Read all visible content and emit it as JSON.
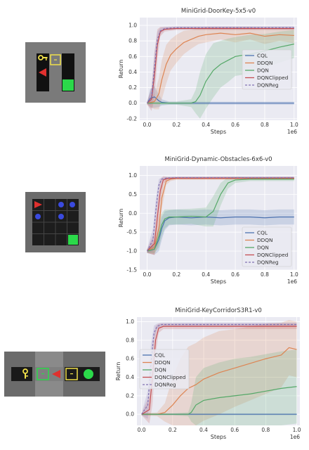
{
  "colors": {
    "CQL": "#4c72b0",
    "DDQN": "#dd8452",
    "DQN": "#55a868",
    "DQNClipped": "#c44e52",
    "DQNReg": "#8172b3",
    "plot_bg": "#eaeaf2",
    "grid": "#ffffff"
  },
  "chart_data": [
    {
      "type": "line",
      "title": "MiniGrid-DoorKey-5x5-v0",
      "xlabel": "Steps",
      "ylabel": "Return",
      "x_scale_label": "1e6",
      "xlim": [
        -0.05,
        1.02
      ],
      "ylim": [
        -0.22,
        1.1
      ],
      "xticks": [
        0.0,
        0.2,
        0.4,
        0.6,
        0.8,
        1.0
      ],
      "xtick_labels": [
        "0.0",
        "0.2",
        "0.4",
        "0.6",
        "0.8",
        "1.0"
      ],
      "yticks": [
        -0.2,
        0.0,
        0.2,
        0.4,
        0.6,
        0.8,
        1.0
      ],
      "ytick_labels": [
        "-0.2",
        "0.0",
        "0.2",
        "0.4",
        "0.6",
        "0.8",
        "1.0"
      ],
      "legend": "right",
      "legend_entries": [
        "CQL",
        "DDQN",
        "DQN",
        "DQNClipped",
        "DQNReg"
      ],
      "environment_icon": "doorkey-5x5-grid",
      "series": [
        {
          "name": "CQL",
          "key": "CQL",
          "dashed": false,
          "x": [
            0.0,
            0.02,
            0.05,
            0.08,
            0.1,
            0.15,
            0.2,
            0.3,
            0.5,
            0.7,
            0.9,
            1.0
          ],
          "y": [
            0.0,
            0.06,
            0.08,
            0.03,
            0.01,
            0.0,
            0.0,
            0.0,
            0.0,
            0.0,
            0.0,
            0.0
          ],
          "band": [
            0.0,
            0.12,
            0.14,
            0.08,
            0.04,
            0.02,
            0.02,
            0.02,
            0.02,
            0.02,
            0.02,
            0.02
          ]
        },
        {
          "name": "DDQN",
          "key": "DDQN",
          "dashed": false,
          "x": [
            0.0,
            0.05,
            0.08,
            0.1,
            0.13,
            0.16,
            0.2,
            0.25,
            0.3,
            0.35,
            0.4,
            0.5,
            0.6,
            0.7,
            0.8,
            0.9,
            1.0
          ],
          "y": [
            0.0,
            0.02,
            0.12,
            0.3,
            0.5,
            0.62,
            0.7,
            0.78,
            0.82,
            0.86,
            0.88,
            0.9,
            0.88,
            0.9,
            0.86,
            0.88,
            0.87
          ],
          "band": [
            0.02,
            0.1,
            0.2,
            0.25,
            0.25,
            0.2,
            0.18,
            0.15,
            0.12,
            0.1,
            0.1,
            0.08,
            0.1,
            0.08,
            0.1,
            0.08,
            0.1
          ]
        },
        {
          "name": "DQN",
          "key": "DQN",
          "dashed": false,
          "x": [
            0.0,
            0.1,
            0.2,
            0.3,
            0.33,
            0.36,
            0.4,
            0.45,
            0.5,
            0.55,
            0.6,
            0.7,
            0.8,
            0.9,
            1.0
          ],
          "y": [
            0.0,
            0.0,
            0.0,
            0.0,
            0.02,
            0.1,
            0.28,
            0.42,
            0.5,
            0.55,
            0.6,
            0.63,
            0.67,
            0.72,
            0.76
          ],
          "band": [
            0.01,
            0.02,
            0.02,
            0.05,
            0.15,
            0.3,
            0.35,
            0.35,
            0.3,
            0.28,
            0.25,
            0.25,
            0.22,
            0.2,
            0.18
          ]
        },
        {
          "name": "DQNClipped",
          "key": "DQNClipped",
          "dashed": false,
          "x": [
            0.0,
            0.03,
            0.05,
            0.07,
            0.09,
            0.12,
            0.2,
            0.4,
            0.6,
            0.8,
            1.0
          ],
          "y": [
            0.0,
            0.05,
            0.35,
            0.75,
            0.92,
            0.95,
            0.96,
            0.96,
            0.96,
            0.96,
            0.96
          ],
          "band": [
            0.02,
            0.15,
            0.3,
            0.2,
            0.06,
            0.03,
            0.02,
            0.02,
            0.02,
            0.02,
            0.02
          ]
        },
        {
          "name": "DQNReg",
          "key": "DQNReg",
          "dashed": true,
          "x": [
            0.0,
            0.03,
            0.05,
            0.07,
            0.09,
            0.12,
            0.2,
            0.4,
            0.6,
            0.8,
            1.0
          ],
          "y": [
            0.0,
            0.08,
            0.45,
            0.82,
            0.93,
            0.96,
            0.97,
            0.97,
            0.97,
            0.97,
            0.97
          ],
          "band": [
            0.02,
            0.1,
            0.2,
            0.1,
            0.04,
            0.02,
            0.02,
            0.02,
            0.02,
            0.02,
            0.02
          ]
        }
      ]
    },
    {
      "type": "line",
      "title": "MiniGrid-Dynamic-Obstacles-6x6-v0",
      "xlabel": "Steps",
      "ylabel": "Return",
      "x_scale_label": "1e6",
      "xlim": [
        -0.05,
        1.02
      ],
      "ylim": [
        -1.5,
        1.25
      ],
      "xticks": [
        0.0,
        0.2,
        0.4,
        0.6,
        0.8,
        1.0
      ],
      "xtick_labels": [
        "0.0",
        "0.2",
        "0.4",
        "0.6",
        "0.8",
        "1.0"
      ],
      "yticks": [
        -1.5,
        -1.0,
        -0.5,
        0.0,
        0.5,
        1.0
      ],
      "ytick_labels": [
        "-1.5",
        "-1.0",
        "-0.5",
        "0.0",
        "0.5",
        "1.0"
      ],
      "legend": "lower right",
      "legend_entries": [
        "CQL",
        "DDQN",
        "DQN",
        "DQNClipped",
        "DQNReg"
      ],
      "environment_icon": "dynamic-obstacles-6x6-grid",
      "series": [
        {
          "name": "CQL",
          "key": "CQL",
          "dashed": false,
          "x": [
            0.0,
            0.05,
            0.08,
            0.1,
            0.12,
            0.15,
            0.2,
            0.3,
            0.4,
            0.5,
            0.6,
            0.7,
            0.8,
            0.9,
            1.0
          ],
          "y": [
            -1.0,
            -0.95,
            -0.7,
            -0.4,
            -0.2,
            -0.12,
            -0.1,
            -0.12,
            -0.1,
            -0.12,
            -0.1,
            -0.1,
            -0.12,
            -0.1,
            -0.1
          ],
          "band": [
            0.05,
            0.15,
            0.3,
            0.3,
            0.25,
            0.2,
            0.2,
            0.2,
            0.2,
            0.2,
            0.2,
            0.2,
            0.2,
            0.2,
            0.2
          ]
        },
        {
          "name": "DDQN",
          "key": "DDQN",
          "dashed": false,
          "x": [
            0.0,
            0.05,
            0.08,
            0.1,
            0.13,
            0.16,
            0.2,
            0.3,
            0.5,
            0.7,
            0.9,
            1.0
          ],
          "y": [
            -1.0,
            -0.9,
            -0.4,
            0.4,
            0.85,
            0.9,
            0.92,
            0.92,
            0.92,
            0.92,
            0.92,
            0.92
          ],
          "band": [
            0.05,
            0.2,
            0.4,
            0.3,
            0.1,
            0.05,
            0.04,
            0.04,
            0.04,
            0.04,
            0.04,
            0.04
          ]
        },
        {
          "name": "DQN",
          "key": "DQN",
          "dashed": false,
          "x": [
            0.0,
            0.05,
            0.08,
            0.1,
            0.12,
            0.15,
            0.2,
            0.3,
            0.4,
            0.45,
            0.5,
            0.55,
            0.6,
            0.7,
            0.8,
            0.9,
            1.0
          ],
          "y": [
            -1.0,
            -0.95,
            -0.6,
            -0.3,
            -0.15,
            -0.1,
            -0.1,
            -0.08,
            -0.1,
            0.05,
            0.5,
            0.8,
            0.88,
            0.9,
            0.9,
            0.9,
            0.9
          ],
          "band": [
            0.05,
            0.1,
            0.3,
            0.3,
            0.25,
            0.2,
            0.2,
            0.2,
            0.25,
            0.4,
            0.3,
            0.15,
            0.08,
            0.05,
            0.05,
            0.05,
            0.05
          ]
        },
        {
          "name": "DQNClipped",
          "key": "DQNClipped",
          "dashed": false,
          "x": [
            0.0,
            0.05,
            0.07,
            0.09,
            0.11,
            0.14,
            0.2,
            0.4,
            0.6,
            0.8,
            1.0
          ],
          "y": [
            -1.0,
            -0.8,
            -0.1,
            0.6,
            0.88,
            0.92,
            0.93,
            0.93,
            0.93,
            0.93,
            0.93
          ],
          "band": [
            0.05,
            0.3,
            0.4,
            0.3,
            0.1,
            0.04,
            0.03,
            0.03,
            0.03,
            0.03,
            0.03
          ]
        },
        {
          "name": "DQNReg",
          "key": "DQNReg",
          "dashed": true,
          "x": [
            0.0,
            0.04,
            0.06,
            0.08,
            0.1,
            0.13,
            0.2,
            0.4,
            0.6,
            0.8,
            1.0
          ],
          "y": [
            -1.0,
            -0.7,
            0.1,
            0.75,
            0.9,
            0.93,
            0.94,
            0.94,
            0.94,
            0.94,
            0.94
          ],
          "band": [
            0.05,
            0.3,
            0.3,
            0.15,
            0.05,
            0.03,
            0.03,
            0.03,
            0.03,
            0.03,
            0.03
          ]
        }
      ]
    },
    {
      "type": "line",
      "title": "MiniGrid-KeyCorridorS3R1-v0",
      "xlabel": "Steps",
      "ylabel": "Return",
      "x_scale_label": "1e6",
      "xlim": [
        -0.03,
        1.02
      ],
      "ylim": [
        -0.12,
        1.05
      ],
      "xticks": [
        0.0,
        0.2,
        0.4,
        0.6,
        0.8,
        1.0
      ],
      "xtick_labels": [
        "0.0",
        "0.2",
        "0.4",
        "0.6",
        "0.8",
        "1.0"
      ],
      "yticks": [
        0.0,
        0.2,
        0.4,
        0.6,
        0.8,
        1.0
      ],
      "ytick_labels": [
        "0.0",
        "0.2",
        "0.4",
        "0.6",
        "0.8",
        "1.0"
      ],
      "legend": "left",
      "legend_entries": [
        "CQL",
        "DDQN",
        "DQN",
        "DQNClipped",
        "DQNReg"
      ],
      "environment_icon": "key-corridor-s3r1-grid",
      "series": [
        {
          "name": "CQL",
          "key": "CQL",
          "dashed": false,
          "x": [
            0.0,
            0.1,
            0.2,
            0.4,
            0.6,
            0.8,
            1.0
          ],
          "y": [
            0.0,
            0.0,
            0.0,
            0.0,
            0.0,
            0.0,
            0.0
          ],
          "band": [
            0.01,
            0.01,
            0.01,
            0.01,
            0.01,
            0.01,
            0.01
          ]
        },
        {
          "name": "DDQN",
          "key": "DDQN",
          "dashed": false,
          "x": [
            0.0,
            0.1,
            0.15,
            0.2,
            0.25,
            0.3,
            0.35,
            0.4,
            0.5,
            0.6,
            0.7,
            0.8,
            0.9,
            0.95,
            1.0
          ],
          "y": [
            0.0,
            0.0,
            0.02,
            0.1,
            0.2,
            0.28,
            0.32,
            0.38,
            0.45,
            0.5,
            0.55,
            0.6,
            0.64,
            0.72,
            0.7
          ],
          "band": [
            0.01,
            0.02,
            0.1,
            0.3,
            0.4,
            0.45,
            0.45,
            0.45,
            0.45,
            0.42,
            0.4,
            0.38,
            0.35,
            0.3,
            0.3
          ]
        },
        {
          "name": "DQN",
          "key": "DQN",
          "dashed": false,
          "x": [
            0.0,
            0.2,
            0.3,
            0.32,
            0.35,
            0.4,
            0.5,
            0.6,
            0.7,
            0.8,
            0.9,
            1.0
          ],
          "y": [
            0.0,
            0.0,
            0.0,
            0.02,
            0.1,
            0.15,
            0.18,
            0.2,
            0.22,
            0.25,
            0.28,
            0.3
          ],
          "band": [
            0.01,
            0.01,
            0.02,
            0.1,
            0.3,
            0.35,
            0.38,
            0.4,
            0.4,
            0.4,
            0.4,
            0.4
          ]
        },
        {
          "name": "DQNClipped",
          "key": "DQNClipped",
          "dashed": false,
          "x": [
            0.0,
            0.05,
            0.07,
            0.09,
            0.11,
            0.14,
            0.2,
            0.4,
            0.6,
            0.8,
            1.0
          ],
          "y": [
            0.0,
            0.05,
            0.4,
            0.8,
            0.93,
            0.95,
            0.95,
            0.95,
            0.95,
            0.95,
            0.95
          ],
          "band": [
            0.01,
            0.15,
            0.3,
            0.15,
            0.05,
            0.03,
            0.03,
            0.03,
            0.03,
            0.03,
            0.03
          ]
        },
        {
          "name": "DQNReg",
          "key": "DQNReg",
          "dashed": true,
          "x": [
            0.0,
            0.04,
            0.06,
            0.08,
            0.1,
            0.13,
            0.2,
            0.4,
            0.6,
            0.8,
            1.0
          ],
          "y": [
            0.0,
            0.1,
            0.55,
            0.88,
            0.95,
            0.97,
            0.97,
            0.97,
            0.97,
            0.97,
            0.97
          ],
          "band": [
            0.01,
            0.15,
            0.2,
            0.08,
            0.03,
            0.02,
            0.02,
            0.02,
            0.02,
            0.02,
            0.02
          ]
        }
      ]
    }
  ]
}
